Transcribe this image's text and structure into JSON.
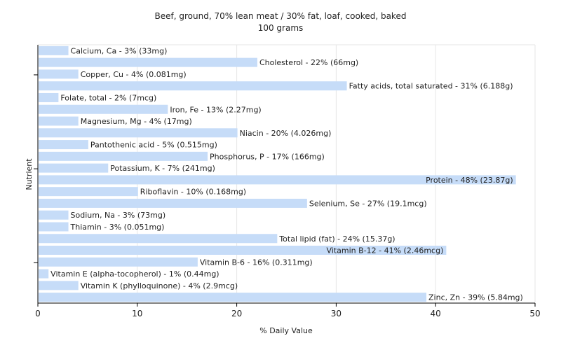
{
  "chart_data": {
    "type": "bar",
    "orientation": "horizontal",
    "title": "Beef, ground, 70% lean meat / 30% fat, loaf, cooked, baked",
    "subtitle": "100 grams",
    "xlabel": "% Daily Value",
    "ylabel": "Nutrient",
    "xlim": [
      0,
      50
    ],
    "xticks": [
      0,
      10,
      20,
      30,
      40,
      50
    ],
    "grid": true,
    "bar_color": "#c6dcf8",
    "label_inside_threshold": 41,
    "categories": [
      "Calcium, Ca",
      "Cholesterol",
      "Copper, Cu",
      "Fatty acids, total saturated",
      "Folate, total",
      "Iron, Fe",
      "Magnesium, Mg",
      "Niacin",
      "Pantothenic acid",
      "Phosphorus, P",
      "Potassium, K",
      "Protein",
      "Riboflavin",
      "Selenium, Se",
      "Sodium, Na",
      "Thiamin",
      "Total lipid (fat)",
      "Vitamin B-12",
      "Vitamin B-6",
      "Vitamin E (alpha-tocopherol)",
      "Vitamin K (phylloquinone)",
      "Zinc, Zn"
    ],
    "values": [
      3,
      22,
      4,
      31,
      2,
      13,
      4,
      20,
      5,
      17,
      7,
      48,
      10,
      27,
      3,
      3,
      24,
      41,
      16,
      1,
      4,
      39
    ],
    "labels": [
      "Calcium, Ca - 3% (33mg)",
      "Cholesterol - 22% (66mg)",
      "Copper, Cu - 4% (0.081mg)",
      "Fatty acids, total saturated - 31% (6.188g)",
      "Folate, total - 2% (7mcg)",
      "Iron, Fe - 13% (2.27mg)",
      "Magnesium, Mg - 4% (17mg)",
      "Niacin - 20% (4.026mg)",
      "Pantothenic acid - 5% (0.515mg)",
      "Phosphorus, P - 17% (166mg)",
      "Potassium, K - 7% (241mg)",
      "Protein - 48% (23.87g)",
      "Riboflavin - 10% (0.168mg)",
      "Selenium, Se - 27% (19.1mcg)",
      "Sodium, Na - 3% (73mg)",
      "Thiamin - 3% (0.051mg)",
      "Total lipid (fat) - 24% (15.37g)",
      "Vitamin B-12 - 41% (2.46mcg)",
      "Vitamin B-6 - 16% (0.311mg)",
      "Vitamin E (alpha-tocopherol) - 1% (0.44mg)",
      "Vitamin K (phylloquinone) - 4% (2.9mcg)",
      "Zinc, Zn - 39% (5.84mg)"
    ]
  }
}
